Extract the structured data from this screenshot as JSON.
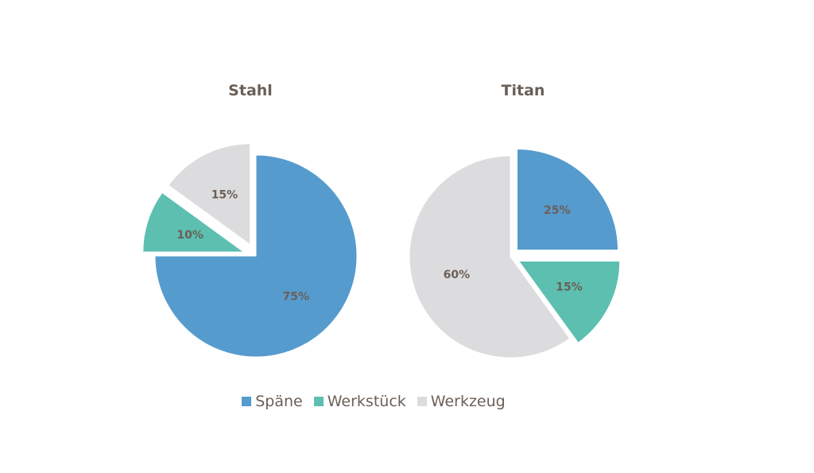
{
  "colors": {
    "background": "#ffffff",
    "text": "#6b5f57",
    "spaene": "#559bce",
    "werkstueck": "#5cbfb0",
    "werkzeug": "#dcdcde"
  },
  "legend": [
    {
      "label": "Späne",
      "color": "#559bce"
    },
    {
      "label": "Werkstück",
      "color": "#5cbfb0"
    },
    {
      "label": "Werkzeug",
      "color": "#dcdcde"
    }
  ],
  "chart_data": [
    {
      "type": "pie",
      "title": "Stahl",
      "slices": [
        {
          "name": "Späne",
          "value": 75,
          "label": "75%",
          "color": "#559bce",
          "exploded": false
        },
        {
          "name": "Werkstück",
          "value": 10,
          "label": "10%",
          "color": "#5cbfb0",
          "exploded": true
        },
        {
          "name": "Werkzeug",
          "value": 15,
          "label": "15%",
          "color": "#dcdcde",
          "exploded": true
        }
      ]
    },
    {
      "type": "pie",
      "title": "Titan",
      "slices": [
        {
          "name": "Späne",
          "value": 25,
          "label": "25%",
          "color": "#559bce",
          "exploded": true
        },
        {
          "name": "Werkstück",
          "value": 15,
          "label": "15%",
          "color": "#5cbfb0",
          "exploded": true
        },
        {
          "name": "Werkzeug",
          "value": 60,
          "label": "60%",
          "color": "#dcdcde",
          "exploded": false
        }
      ]
    }
  ]
}
